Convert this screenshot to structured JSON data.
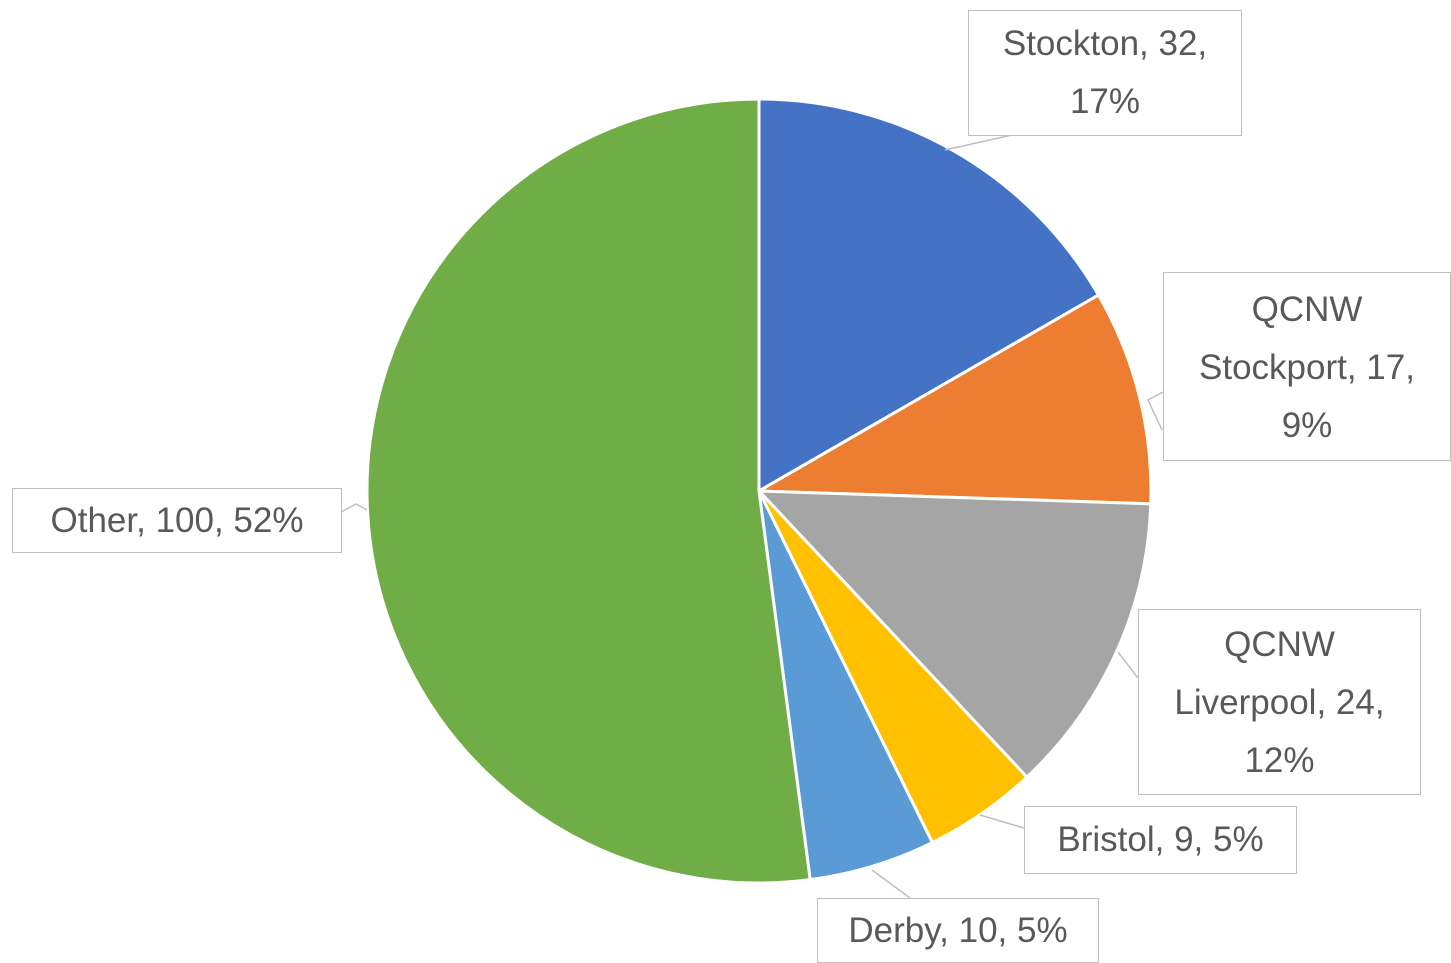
{
  "chart_data": {
    "type": "pie",
    "values": [
      32,
      17,
      24,
      9,
      10,
      100
    ],
    "value_labels": [
      "Stockton, 32,\n17%",
      "QCNW\nStockport, 17,\n9%",
      "QCNW\nLiverpool, 24,\n12%",
      "Bristol, 9, 5%",
      "Derby, 10, 5%",
      "Other, 100, 52%"
    ],
    "colors": [
      "#4472c4",
      "#ed7d31",
      "#a5a5a5",
      "#ffc000",
      "#5b9bd5",
      "#70ad47"
    ]
  }
}
